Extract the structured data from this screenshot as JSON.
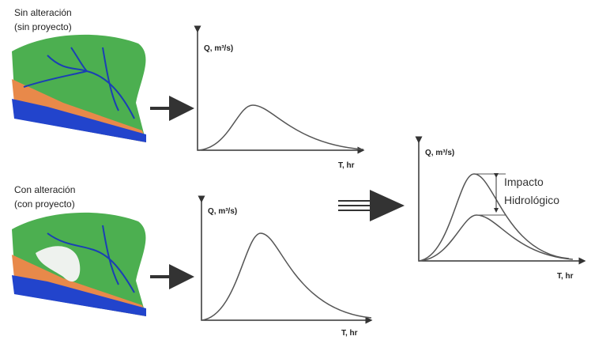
{
  "before": {
    "title": "Sin alteración",
    "subtitle": "(sin proyecto)",
    "y_label": "Q, m³/s)",
    "x_label": "T, hr"
  },
  "after": {
    "title": "Con alteración",
    "subtitle": "(con proyecto)",
    "y_label": "Q, m³/s)",
    "x_label": "T, hr"
  },
  "comparison": {
    "y_label": "Q, m³/s)",
    "x_label": "T, hr",
    "annotation": [
      "Impacto",
      "Hidrológico"
    ]
  }
}
